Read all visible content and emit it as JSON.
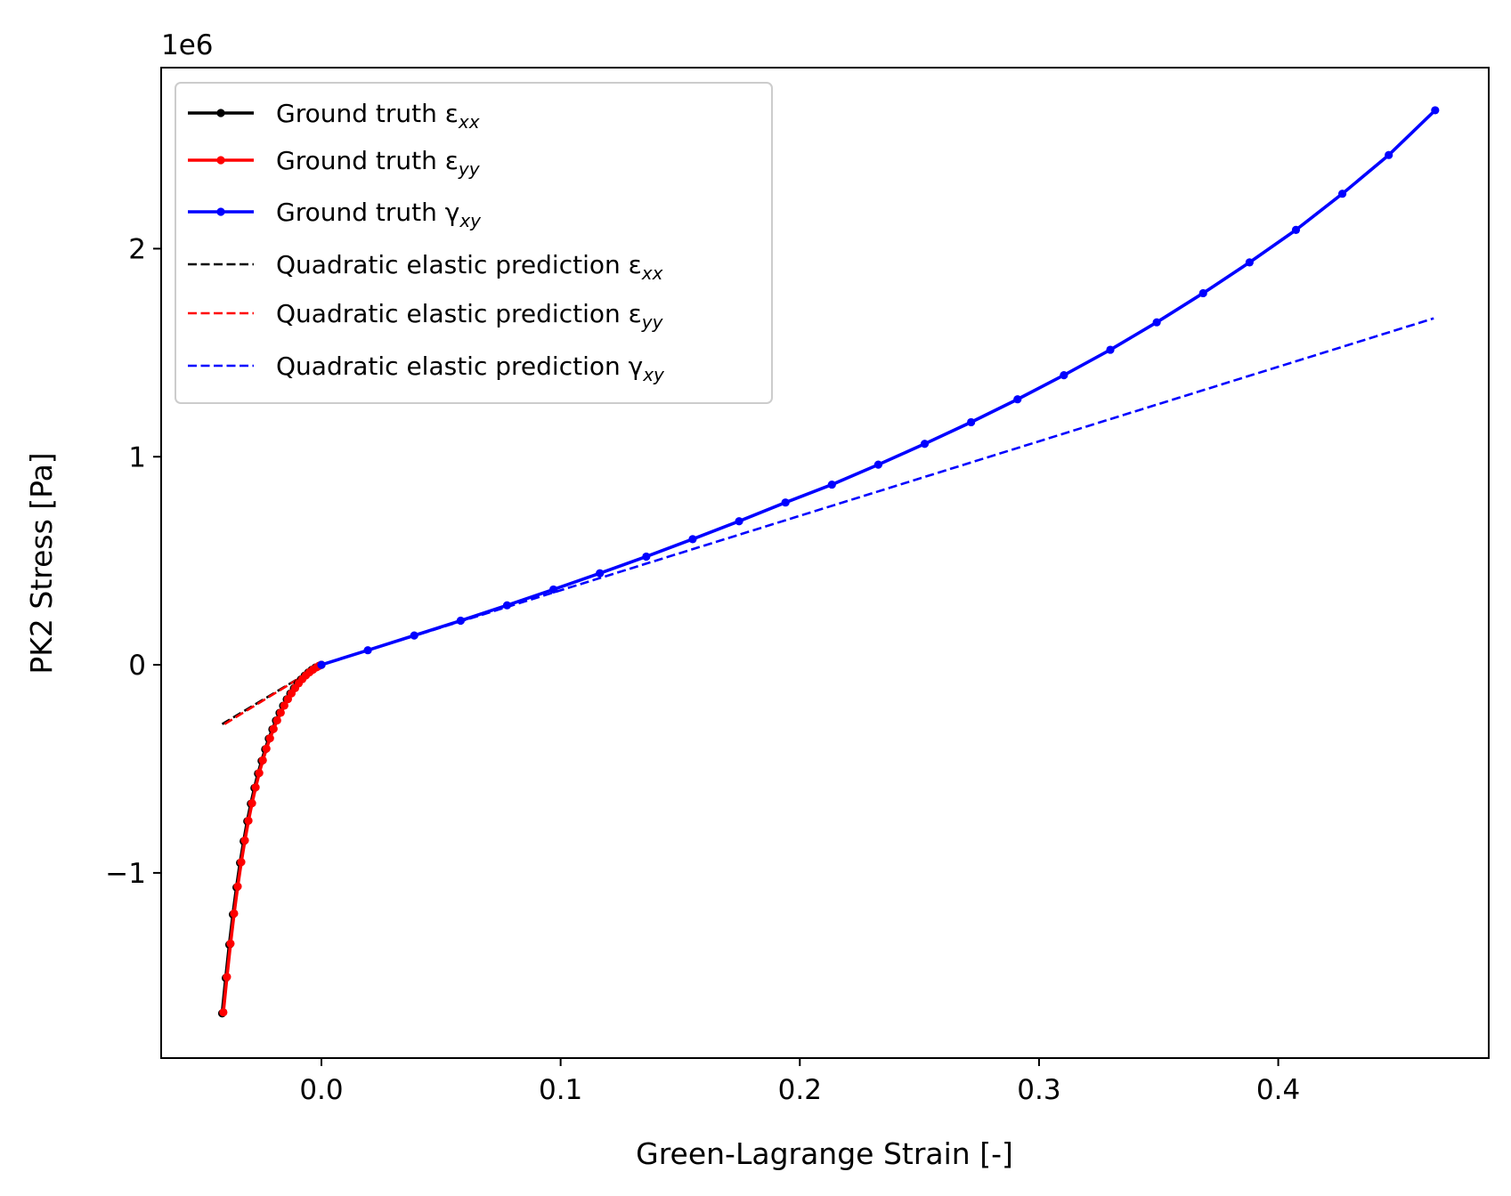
{
  "chart_data": {
    "type": "line",
    "xlabel": "Green-Lagrange Strain [-]",
    "ylabel": "PK2 Stress [Pa]",
    "y_offset_text": "1e6",
    "xlim": [
      -0.067,
      0.488
    ],
    "ylim": [
      -1.89,
      2.87
    ],
    "y_scale_factor": 1000000,
    "xticks": [
      0.0,
      0.1,
      0.2,
      0.3,
      0.4
    ],
    "xtick_labels": [
      "0.0",
      "0.1",
      "0.2",
      "0.3",
      "0.4"
    ],
    "yticks": [
      -1,
      0,
      1,
      2
    ],
    "ytick_labels": [
      "−1",
      "0",
      "1",
      "2"
    ],
    "grid": false,
    "legend_position": "upper-left",
    "series": [
      {
        "name": "Ground truth ε",
        "subscript": "xx",
        "style": "solid-marker",
        "color": "#000000",
        "x": [
          -0.0415,
          -0.04,
          -0.0385,
          -0.037,
          -0.0355,
          -0.034,
          -0.0325,
          -0.031,
          -0.0295,
          -0.028,
          -0.0265,
          -0.025,
          -0.0235,
          -0.022,
          -0.0205,
          -0.019,
          -0.0175,
          -0.016,
          -0.0145,
          -0.013,
          -0.0115,
          -0.01,
          -0.0085,
          -0.007,
          -0.0055,
          -0.004,
          -0.0025,
          -0.001,
          0.0
        ],
        "y": [
          -1.675,
          -1.505,
          -1.345,
          -1.2,
          -1.07,
          -0.952,
          -0.848,
          -0.752,
          -0.668,
          -0.592,
          -0.523,
          -0.462,
          -0.406,
          -0.355,
          -0.31,
          -0.268,
          -0.231,
          -0.197,
          -0.166,
          -0.138,
          -0.113,
          -0.09,
          -0.07,
          -0.052,
          -0.037,
          -0.024,
          -0.013,
          -0.005,
          0.0
        ]
      },
      {
        "name": "Ground truth ε",
        "subscript": "yy",
        "style": "solid-marker",
        "color": "#ff0000",
        "x": [
          -0.041,
          -0.0395,
          -0.038,
          -0.0365,
          -0.035,
          -0.0335,
          -0.032,
          -0.0305,
          -0.029,
          -0.0275,
          -0.026,
          -0.0245,
          -0.023,
          -0.0215,
          -0.02,
          -0.0185,
          -0.017,
          -0.0155,
          -0.014,
          -0.0125,
          -0.011,
          -0.0095,
          -0.008,
          -0.0065,
          -0.005,
          -0.0035,
          -0.002,
          -0.001,
          0.0
        ],
        "y": [
          -1.67,
          -1.5,
          -1.34,
          -1.195,
          -1.065,
          -0.948,
          -0.844,
          -0.749,
          -0.665,
          -0.589,
          -0.52,
          -0.459,
          -0.403,
          -0.353,
          -0.308,
          -0.267,
          -0.23,
          -0.196,
          -0.165,
          -0.137,
          -0.112,
          -0.089,
          -0.069,
          -0.051,
          -0.036,
          -0.023,
          -0.012,
          -0.005,
          0.0
        ]
      },
      {
        "name": "Ground truth γ",
        "subscript": "xy",
        "style": "solid-marker",
        "color": "#0000ff",
        "x": [
          0.0,
          0.0194,
          0.0388,
          0.0582,
          0.0776,
          0.097,
          0.1164,
          0.1358,
          0.1552,
          0.1746,
          0.194,
          0.2134,
          0.2328,
          0.2522,
          0.2716,
          0.291,
          0.3104,
          0.3298,
          0.3492,
          0.3686,
          0.388,
          0.4074,
          0.4268,
          0.4462,
          0.4656
        ],
        "y": [
          0.0,
          0.07,
          0.141,
          0.212,
          0.286,
          0.362,
          0.44,
          0.52,
          0.604,
          0.69,
          0.78,
          0.866,
          0.962,
          1.062,
          1.166,
          1.276,
          1.392,
          1.514,
          1.646,
          1.786,
          1.934,
          2.09,
          2.264,
          2.45,
          2.665
        ]
      },
      {
        "name": "Quadratic elastic prediction ε",
        "subscript": "xx",
        "style": "dashed",
        "color": "#000000",
        "x": [
          -0.0415,
          0.0
        ],
        "y": [
          -0.285,
          0.0
        ]
      },
      {
        "name": "Quadratic elastic prediction ε",
        "subscript": "yy",
        "style": "dashed",
        "color": "#ff0000",
        "x": [
          -0.0405,
          0.0
        ],
        "y": [
          -0.285,
          0.0
        ]
      },
      {
        "name": "Quadratic elastic prediction γ",
        "subscript": "xy",
        "style": "dashed",
        "color": "#0000ff",
        "x": [
          0.0,
          0.465
        ],
        "y": [
          0.0,
          1.665
        ]
      }
    ]
  }
}
